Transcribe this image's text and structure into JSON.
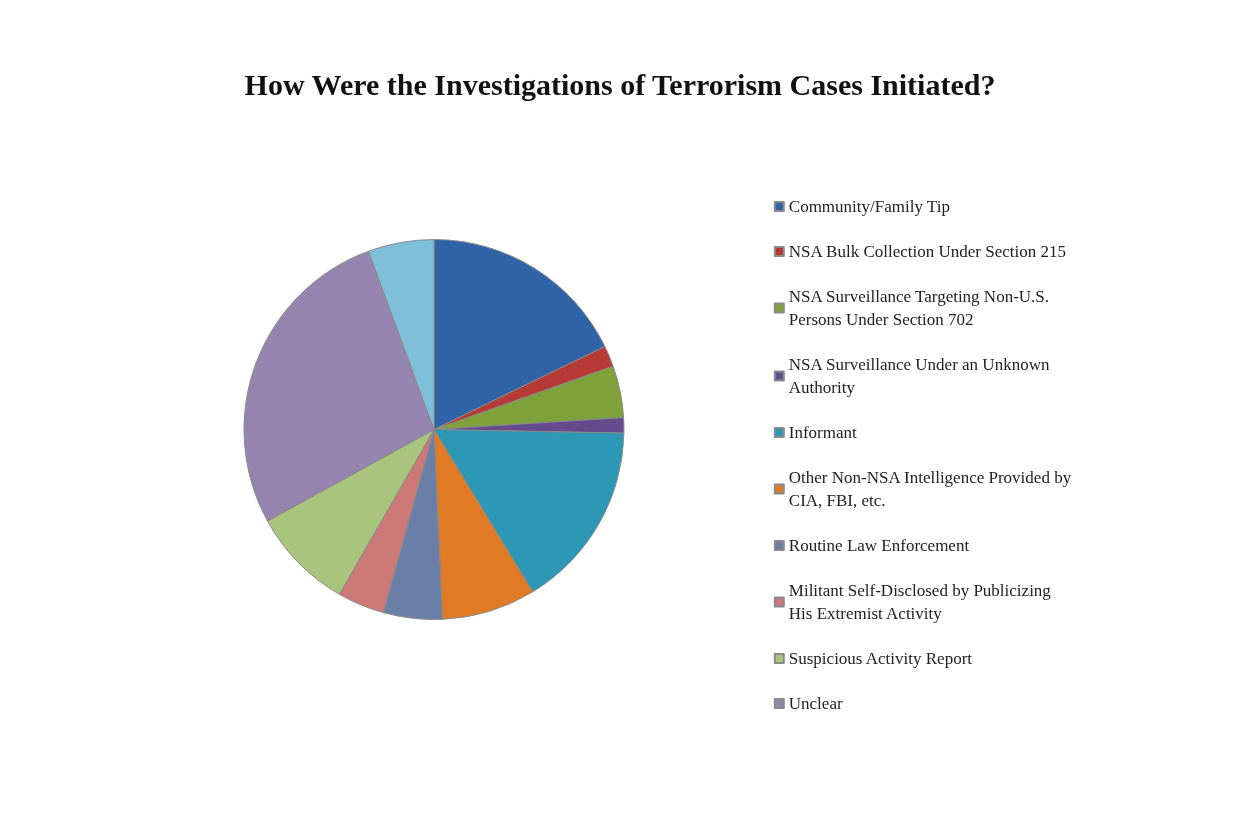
{
  "chart_data": {
    "type": "pie",
    "title": "How Were the Investigations of Terrorism Cases Initiated?",
    "categories": [
      "Community/Family Tip",
      "NSA Bulk Collection Under Section 215",
      "NSA Surveillance Targeting Non-U.S. Persons Under Section 702",
      "NSA Surveillance Under an Unknown Authority",
      "Informant",
      "Other Non-NSA Intelligence Provided by CIA, FBI, etc.",
      "Routine Law Enforcement",
      "Militant Self-Disclosed by Publicizing His Extremist Activity",
      "Suspicious Activity Report",
      "Unclear",
      null
    ],
    "values": [
      17.8,
      1.8,
      4.4,
      1.3,
      16,
      8,
      5,
      4,
      8.7,
      27.4,
      5.6
    ],
    "colors": [
      "#3064a8",
      "#b83a36",
      "#7ea13a",
      "#654a8e",
      "#2d98b6",
      "#e07a24",
      "#6a7fa8",
      "#cc7876",
      "#a9c47c",
      "#9684b0",
      "#7fbfd9"
    ],
    "legend": "right"
  }
}
